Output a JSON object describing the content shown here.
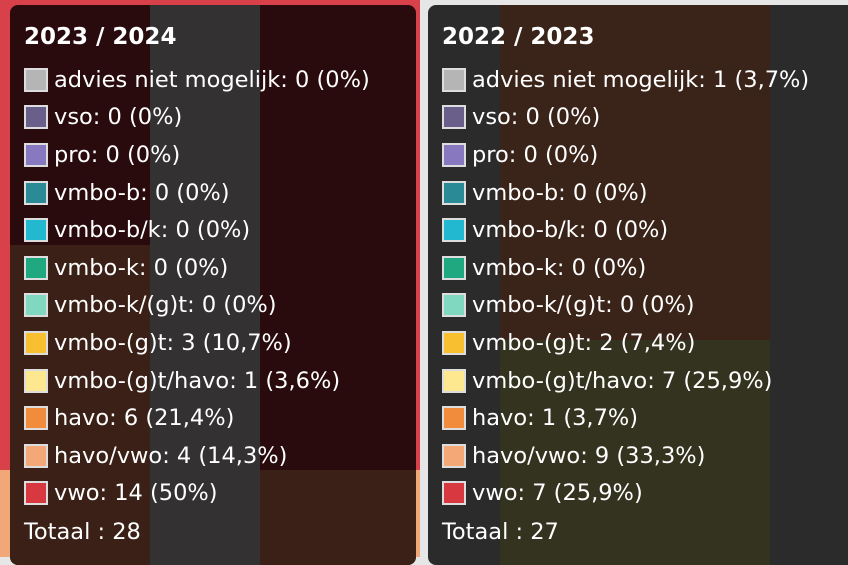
{
  "panels": [
    {
      "title": "2023 / 2024",
      "total": "Totaal : 28",
      "items": [
        {
          "label": "advies niet mogelijk: 0 (0%)",
          "color": "#b5b5b5"
        },
        {
          "label": "vso: 0 (0%)",
          "color": "#6a5f8a"
        },
        {
          "label": "pro: 0 (0%)",
          "color": "#8878c0"
        },
        {
          "label": "vmbo-b: 0 (0%)",
          "color": "#2a8a96"
        },
        {
          "label": "vmbo-b/k: 0 (0%)",
          "color": "#22b8d0"
        },
        {
          "label": "vmbo-k: 0 (0%)",
          "color": "#20a880"
        },
        {
          "label": "vmbo-k/(g)t: 0 (0%)",
          "color": "#80d8c0"
        },
        {
          "label": "vmbo-(g)t: 3 (10,7%)",
          "color": "#f8c030"
        },
        {
          "label": "vmbo-(g)t/havo: 1 (3,6%)",
          "color": "#fde890"
        },
        {
          "label": "havo: 6 (21,4%)",
          "color": "#f08c3c"
        },
        {
          "label": "havo/vwo: 4 (14,3%)",
          "color": "#f4a878"
        },
        {
          "label": "vwo: 14 (50%)",
          "color": "#d83840"
        }
      ]
    },
    {
      "title": "2022 / 2023",
      "total": "Totaal : 27",
      "items": [
        {
          "label": "advies niet mogelijk: 1 (3,7%)",
          "color": "#b5b5b5"
        },
        {
          "label": "vso: 0 (0%)",
          "color": "#6a5f8a"
        },
        {
          "label": "pro: 0 (0%)",
          "color": "#8878c0"
        },
        {
          "label": "vmbo-b: 0 (0%)",
          "color": "#2a8a96"
        },
        {
          "label": "vmbo-b/k: 0 (0%)",
          "color": "#22b8d0"
        },
        {
          "label": "vmbo-k: 0 (0%)",
          "color": "#20a880"
        },
        {
          "label": "vmbo-k/(g)t: 0 (0%)",
          "color": "#80d8c0"
        },
        {
          "label": "vmbo-(g)t: 2 (7,4%)",
          "color": "#f8c030"
        },
        {
          "label": "vmbo-(g)t/havo: 7 (25,9%)",
          "color": "#fde890"
        },
        {
          "label": "havo: 1 (3,7%)",
          "color": "#f08c3c"
        },
        {
          "label": "havo/vwo: 9 (33,3%)",
          "color": "#f4a878"
        },
        {
          "label": "vwo: 7 (25,9%)",
          "color": "#d83840"
        }
      ]
    }
  ]
}
